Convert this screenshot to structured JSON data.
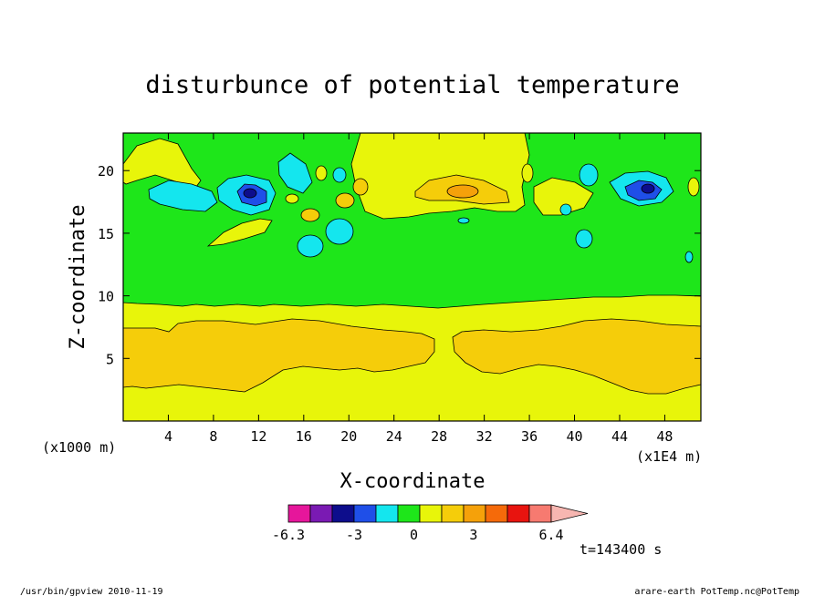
{
  "chart_data": {
    "type": "heatmap",
    "title": "disturbunce of potential temperature",
    "xlabel": "X-coordinate",
    "ylabel": "Z-coordinate",
    "x_unit_label": "(x1E4 m)",
    "y_unit_label": "(x1000 m)",
    "x_ticks": [
      4,
      8,
      12,
      16,
      20,
      24,
      28,
      32,
      36,
      40,
      44,
      48
    ],
    "y_ticks": [
      5,
      10,
      15,
      20
    ],
    "xlim": [
      0,
      51.2
    ],
    "ylim": [
      0,
      23
    ],
    "colorbar": {
      "tick_labels": [
        "-6.3",
        "-3",
        "0",
        "3",
        "6.4"
      ],
      "tick_values": [
        -6.3,
        -3,
        0,
        3,
        6.4
      ],
      "levels": [
        -6.3,
        -5.2,
        -4.1,
        -3.0,
        -1.9,
        -0.8,
        0.3,
        1.4,
        2.5,
        3.6,
        4.7,
        5.8,
        6.4
      ],
      "colors": [
        "#e6169b",
        "#7a1ab3",
        "#0d0d8c",
        "#1f4fe8",
        "#14e6ee",
        "#1ee61a",
        "#e8f50a",
        "#f5cd0a",
        "#f5a10a",
        "#f56a0a",
        "#e8140f",
        "#f77a70",
        "#f7b6b1"
      ]
    },
    "dominant_bands": [
      {
        "z_range": [
          0,
          2.5
        ],
        "value_band": "0 to 1",
        "color": "#e8f50a"
      },
      {
        "z_range": [
          2.5,
          7.5
        ],
        "value_band": "1 to 2",
        "color": "#f5cd0a"
      },
      {
        "z_range": [
          7.5,
          9.5
        ],
        "value_band": "0 to 1",
        "color": "#e8f50a"
      },
      {
        "z_range": [
          9.5,
          16.5
        ],
        "value_band": "-1 to 0",
        "color": "#1ee61a"
      },
      {
        "z_range": [
          16.5,
          23
        ],
        "value_band": "mixed -4 to 2",
        "color": "#1ee61a"
      }
    ]
  },
  "annotations": {
    "time": "t=143400 s",
    "footer_left": "/usr/bin/gpview   2010-11-19",
    "footer_right": "arare-earth_PotTemp.nc@PotTemp"
  }
}
